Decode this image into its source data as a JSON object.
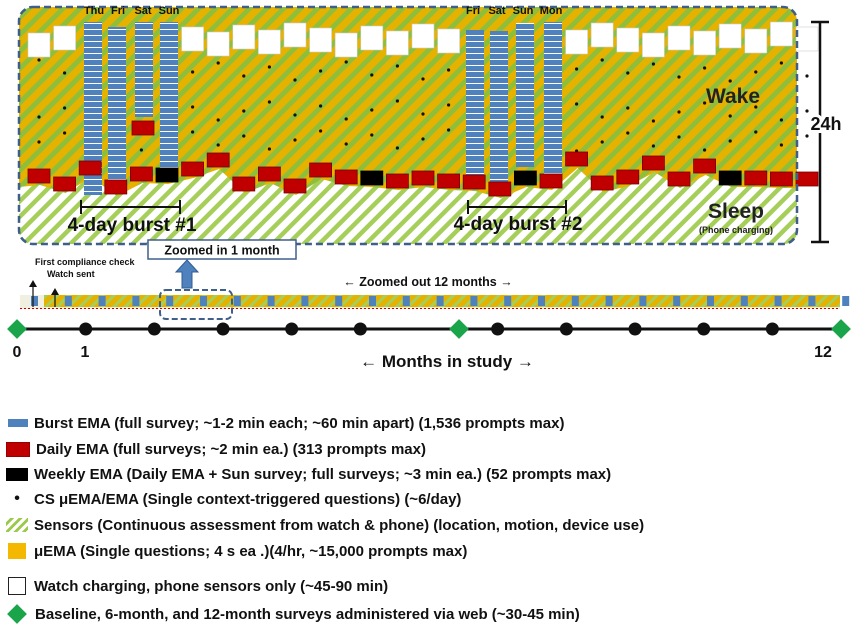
{
  "colors": {
    "burst": "#4f81bd",
    "daily": "#c00000",
    "weekly": "#000000",
    "uema": "#e5b200",
    "sensor_stripe": "#9bc94a",
    "survey_diamond": "#1aa54a",
    "frame": "#3f5f8a"
  },
  "top": {
    "label_24h": "24h",
    "wake": "Wake",
    "sleep": "Sleep",
    "sleep_note": "(Phone charging)",
    "burst1_label": "4-day burst #1",
    "burst2_label": "4-day burst #2",
    "burst1_days": [
      "Thu",
      "Fri",
      "Sat",
      "Sun"
    ],
    "burst2_days": [
      "Fri",
      "Sat",
      "Sun",
      "Mon"
    ],
    "zoom_label": "Zoomed in 1 month"
  },
  "strip": {
    "compliance_label": "First compliance check",
    "watch_label": "Watch sent",
    "zoomed_out_label": "← Zoomed out 12 months →"
  },
  "timeline": {
    "start_label": "0",
    "one_label": "1",
    "end_label": "12",
    "axis_label": "← Months in study →"
  },
  "legend": [
    {
      "icon": "burst-ema-swatch",
      "text": "Burst EMA (full survey; ~1-2 min each; ~60 min apart) (1,536 prompts max)"
    },
    {
      "icon": "daily-ema-swatch",
      "text": "Daily EMA (full surveys; ~2 min ea.) (313 prompts max)"
    },
    {
      "icon": "weekly-ema-swatch",
      "text": "Weekly EMA (Daily EMA + Sun survey; full surveys; ~3 min ea.) (52 prompts max)"
    },
    {
      "icon": "cs-uema-dot",
      "text": "CS μEMA/EMA (Single context-triggered questions) (~6/day)"
    },
    {
      "icon": "sensors-swatch",
      "text": "Sensors (Continuous assessment from watch & phone) (location, motion, device use)"
    },
    {
      "icon": "uema-swatch",
      "text": "μEMA (Single questions; 4 s ea .)(4/hr, ~15,000 prompts max)"
    },
    {
      "icon": "watch-charging-swatch",
      "text": "Watch charging, phone sensors only (~45-90 min)"
    },
    {
      "icon": "survey-diamond-icon",
      "text": "Baseline, 6-month, and 12-month surveys administered via web (~30-45 min)"
    }
  ]
}
